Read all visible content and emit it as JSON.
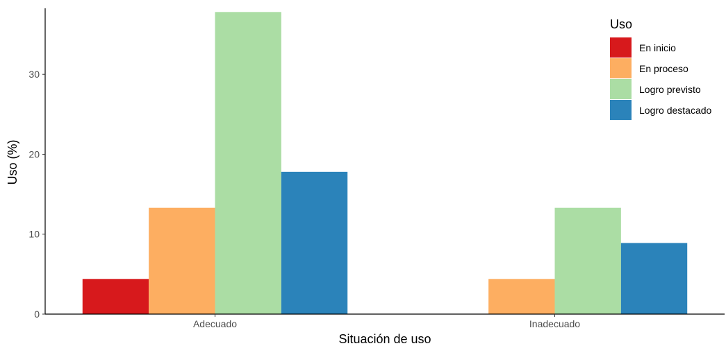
{
  "chart_data": {
    "type": "bar",
    "title": "",
    "xlabel": "Situación de uso",
    "ylabel": "Uso (%)",
    "categories": [
      "Adecuado",
      "Inadecuado"
    ],
    "ylim": [
      0,
      38
    ],
    "yticks": [
      0,
      10,
      20,
      30
    ],
    "grid": false,
    "legend": {
      "title": "Uso",
      "placement": "top-right"
    },
    "series": [
      {
        "name": "En inicio",
        "color": "#d7191c",
        "values": [
          4.4,
          0
        ]
      },
      {
        "name": "En proceso",
        "color": "#fdae61",
        "values": [
          13.3,
          4.4
        ]
      },
      {
        "name": "Logro previsto",
        "color": "#abdda4",
        "values": [
          37.8,
          13.3
        ]
      },
      {
        "name": "Logro destacado",
        "color": "#2b83ba",
        "values": [
          17.8,
          8.9
        ]
      }
    ]
  }
}
